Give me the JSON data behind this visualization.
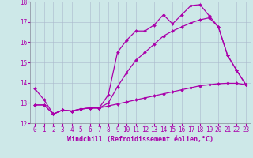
{
  "xlabel": "Windchill (Refroidissement éolien,°C)",
  "xlim": [
    -0.5,
    23.5
  ],
  "ylim": [
    12,
    18
  ],
  "xticks": [
    0,
    1,
    2,
    3,
    4,
    5,
    6,
    7,
    8,
    9,
    10,
    11,
    12,
    13,
    14,
    15,
    16,
    17,
    18,
    19,
    20,
    21,
    22,
    23
  ],
  "yticks": [
    12,
    13,
    14,
    15,
    16,
    17,
    18
  ],
  "bg_color": "#cde8e8",
  "grid_color": "#aab8cc",
  "line_color": "#aa00aa",
  "lines": [
    {
      "x": [
        0,
        1,
        2,
        3,
        4,
        5,
        6,
        7,
        8,
        9,
        10,
        11,
        12,
        13,
        14,
        15,
        16,
        17,
        18,
        19,
        20,
        21,
        22,
        23
      ],
      "y": [
        13.7,
        13.15,
        12.45,
        12.65,
        12.6,
        12.7,
        12.75,
        12.75,
        13.4,
        15.5,
        16.1,
        16.55,
        16.55,
        16.85,
        17.35,
        16.9,
        17.35,
        17.8,
        17.85,
        17.3,
        16.75,
        15.35,
        14.6,
        13.9
      ]
    },
    {
      "x": [
        0,
        1,
        2,
        3,
        4,
        5,
        6,
        7,
        8,
        9,
        10,
        11,
        12,
        13,
        14,
        15,
        16,
        17,
        18,
        19,
        20,
        21,
        22,
        23
      ],
      "y": [
        12.9,
        12.9,
        12.45,
        12.65,
        12.6,
        12.7,
        12.75,
        12.75,
        13.0,
        13.8,
        14.5,
        15.1,
        15.5,
        15.9,
        16.3,
        16.55,
        16.75,
        16.95,
        17.1,
        17.2,
        16.75,
        15.35,
        14.6,
        13.9
      ]
    },
    {
      "x": [
        0,
        1,
        2,
        3,
        4,
        5,
        6,
        7,
        8,
        9,
        10,
        11,
        12,
        13,
        14,
        15,
        16,
        17,
        18,
        19,
        20,
        21,
        22,
        23
      ],
      "y": [
        12.9,
        12.9,
        12.45,
        12.65,
        12.6,
        12.7,
        12.75,
        12.75,
        12.85,
        12.95,
        13.05,
        13.15,
        13.25,
        13.35,
        13.45,
        13.55,
        13.65,
        13.75,
        13.85,
        13.9,
        13.95,
        13.97,
        13.97,
        13.9
      ]
    }
  ],
  "tick_fontsize": 5.5,
  "label_fontsize": 6.0,
  "marker": "D",
  "markersize": 2.0,
  "linewidth": 0.9
}
